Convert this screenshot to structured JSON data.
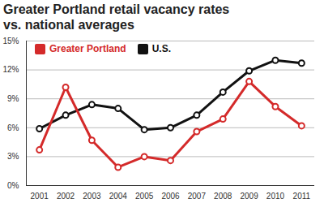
{
  "chart_data": {
    "type": "line",
    "title": "Greater Portland retail vacancy rates vs. national averages",
    "x": [
      2001,
      2002,
      2003,
      2004,
      2005,
      2006,
      2007,
      2008,
      2009,
      2010,
      2011
    ],
    "series": [
      {
        "name": "Greater Portland",
        "color": "#d42a2a",
        "marker": "circle",
        "values": [
          3.7,
          10.2,
          4.7,
          1.9,
          3.0,
          2.6,
          5.6,
          6.9,
          10.8,
          8.2,
          6.2
        ]
      },
      {
        "name": "U.S.",
        "color": "#111111",
        "marker": "circle",
        "values": [
          5.9,
          7.3,
          8.4,
          8.0,
          5.8,
          6.0,
          7.3,
          9.7,
          11.9,
          13.0,
          12.7
        ]
      }
    ],
    "xlim": [
      2000.5,
      2011.5
    ],
    "xticks": [
      2001,
      2002,
      2003,
      2004,
      2005,
      2006,
      2007,
      2008,
      2009,
      2010,
      2011
    ],
    "ylim": [
      0,
      15
    ],
    "yticks": [
      {
        "value": 0,
        "label": "0%"
      },
      {
        "value": 3,
        "label": "3%"
      },
      {
        "value": 6,
        "label": "6%"
      },
      {
        "value": 9,
        "label": "9%"
      },
      {
        "value": 12,
        "label": "12%"
      },
      {
        "value": 15,
        "label": "15%"
      }
    ],
    "grid": true,
    "legend": "top-left"
  }
}
